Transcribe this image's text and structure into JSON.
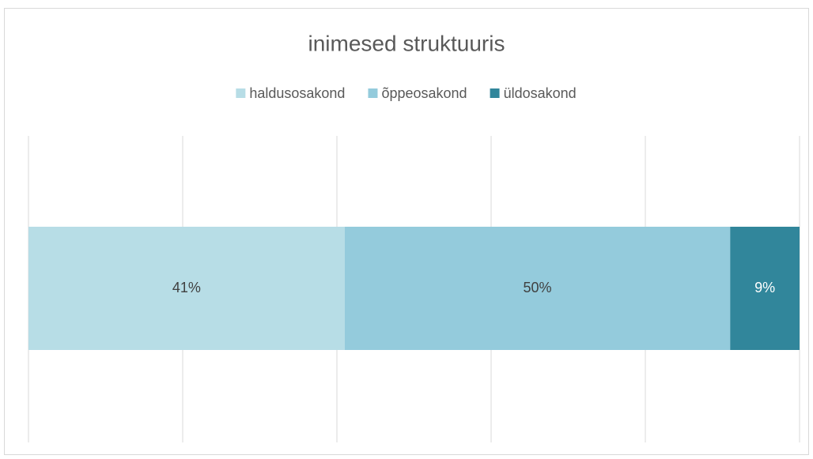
{
  "chart_data": {
    "type": "stacked-barh",
    "title": "inimesed struktuuris",
    "categories": [
      null
    ],
    "series": [
      {
        "name": "haldusosakond",
        "color": "#b7dde6",
        "values": [
          41
        ],
        "value_labels": [
          "41%"
        ]
      },
      {
        "name": "õppeosakond",
        "color": "#94cbdc",
        "values": [
          50
        ],
        "value_labels": [
          "50%"
        ]
      },
      {
        "name": "üldosakond",
        "color": "#31869b",
        "values": [
          9
        ],
        "value_labels": [
          "9%"
        ]
      }
    ],
    "xlim": [
      0,
      100
    ],
    "xticks": [
      0,
      20,
      40,
      60,
      80,
      100
    ],
    "grid": true,
    "legend": "top"
  }
}
